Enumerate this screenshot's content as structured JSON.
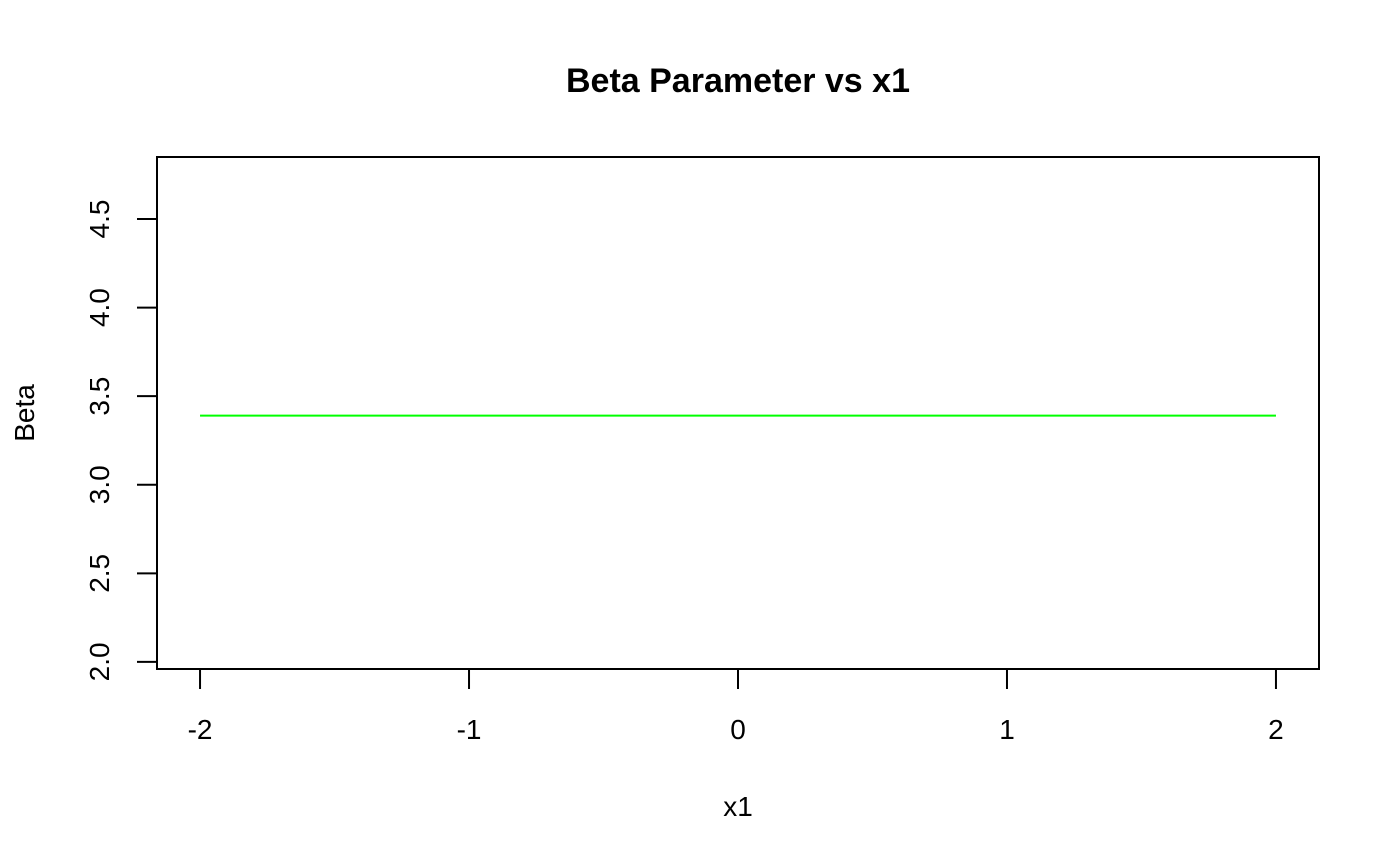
{
  "chart_data": {
    "type": "line",
    "title": "Beta Parameter vs x1",
    "xlabel": "x1",
    "ylabel": "Beta",
    "xlim": [
      -2.16,
      2.16
    ],
    "ylim": [
      1.96,
      4.85
    ],
    "x_ticks": [
      -2,
      -1,
      0,
      1,
      2
    ],
    "x_tick_labels": [
      "-2",
      "-1",
      "0",
      "1",
      "2"
    ],
    "y_ticks": [
      2.0,
      2.5,
      3.0,
      3.5,
      4.0,
      4.5
    ],
    "y_tick_labels": [
      "2.0",
      "2.5",
      "3.0",
      "3.5",
      "4.0",
      "4.5"
    ],
    "grid": false,
    "series": [
      {
        "color": "#00ff00",
        "x": [
          -2,
          2
        ],
        "y": [
          3.39,
          3.39
        ]
      }
    ]
  }
}
